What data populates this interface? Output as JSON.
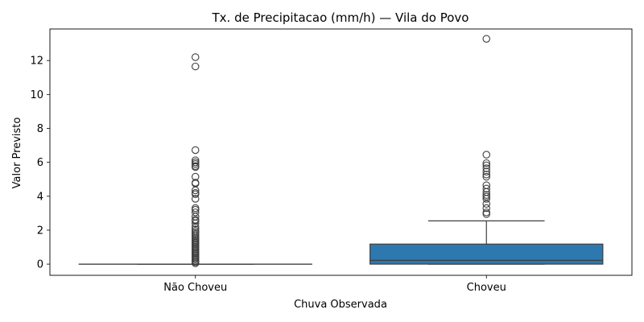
{
  "chart_data": {
    "type": "box",
    "title": "Tx. de Precipitacao (mm/h) — Vila do Povo",
    "xlabel": "Chuva Observada",
    "ylabel": "Valor Previsto",
    "ylim": [
      -0.66,
      13.86
    ],
    "yticks": [
      0,
      2,
      4,
      6,
      8,
      10,
      12
    ],
    "grid": false,
    "legend": "none",
    "categories": [
      "Não Choveu",
      "Choveu"
    ],
    "boxes": [
      {
        "category": "Não Choveu",
        "q1": 0.0,
        "median": 0.0,
        "q3": 0.0,
        "whisker_low": 0.0,
        "whisker_high": 0.0,
        "fill": "#1f77b4",
        "outliers": [
          12.2,
          11.65,
          6.72,
          6.12,
          6.0,
          5.9,
          5.78,
          5.72,
          5.15,
          4.8,
          4.75,
          4.35,
          4.2,
          4.12,
          3.85,
          3.3,
          3.2,
          3.05,
          2.8,
          2.62,
          2.55,
          2.4,
          2.18,
          2.05,
          1.95,
          1.85,
          1.75,
          1.65,
          1.55,
          1.48,
          1.4,
          1.32,
          1.25,
          1.18,
          1.1,
          1.02,
          0.95,
          0.88,
          0.8,
          0.72,
          0.65,
          0.58,
          0.5,
          0.42,
          0.35,
          0.28,
          0.2,
          0.12,
          0.05
        ]
      },
      {
        "category": "Choveu",
        "q1": 0.0,
        "median": 0.22,
        "q3": 1.18,
        "whisker_low": 0.0,
        "whisker_high": 2.55,
        "fill": "#2e78b0",
        "outliers": [
          13.28,
          6.45,
          5.95,
          5.82,
          5.65,
          5.45,
          5.28,
          5.15,
          4.65,
          4.45,
          4.25,
          4.08,
          3.98,
          3.85,
          3.55,
          3.3,
          3.05,
          2.95
        ]
      }
    ]
  }
}
